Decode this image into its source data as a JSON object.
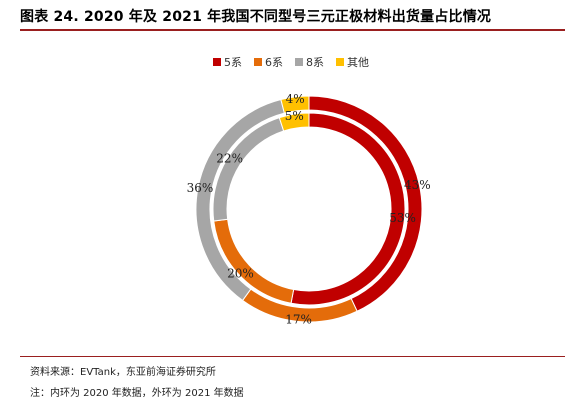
{
  "title": "图表 24. 2020 年及 2021 年我国不同型号三元正极材料出货量占比情况",
  "source": "资料来源：EVTank，东亚前海证券研究所",
  "note": "注：内环为 2020 年数据，外环为 2021 年数据",
  "colors": {
    "accent": "#9a1f1f"
  },
  "chart_data": {
    "type": "pie",
    "variant": "donut",
    "legend_position": "top",
    "categories": [
      "5系",
      "6系",
      "8系",
      "其他"
    ],
    "colors": [
      "#c00000",
      "#e46c0a",
      "#a6a6a6",
      "#ffc000"
    ],
    "series": [
      {
        "values": [
          53,
          20,
          22,
          5
        ],
        "labels": [
          "53%",
          "20%",
          "22%",
          "5%"
        ]
      },
      {
        "values": [
          43,
          17,
          36,
          4
        ],
        "labels": [
          "43%",
          "17%",
          "36%",
          "4%"
        ]
      }
    ]
  }
}
